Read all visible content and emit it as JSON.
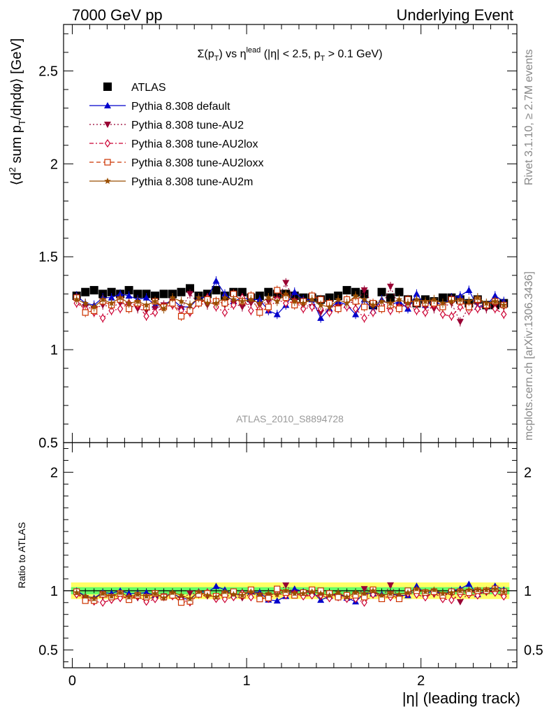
{
  "header": {
    "left": "7000 GeV pp",
    "right": "Underlying Event",
    "side_rivet": "Rivet 3.1.10, ≥ 2.7M events",
    "side_mcplots": "mcplots.cern.ch [arXiv:1306.3436]",
    "watermark": "ATLAS_2010_S8894728"
  },
  "chart_data": [
    {
      "type": "scatter",
      "panel": "main",
      "title_parts": {
        "sigma": "Σ(p",
        "t1": "T",
        "vs": ") vs η",
        "lead": "lead",
        "cut": " (|η| < 2.5, p",
        "t2": "T",
        "tail": " > 0.1 GeV)"
      },
      "ylabel_parts": {
        "open": "⟨d",
        "sup": "2",
        "mid": " sum p",
        "sub": "T",
        "tail": "/dηdφ⟩ [GeV]"
      },
      "xlabel": "|η| (leading track)",
      "xlim": [
        -0.05,
        2.55
      ],
      "ylim": [
        0.5,
        2.75
      ],
      "yticks_major": [
        0.5,
        1,
        1.5,
        2,
        2.5
      ],
      "ytick_labels": [
        "0.5",
        "1",
        "1.5",
        "2",
        "2.5"
      ],
      "x": [
        0.025,
        0.075,
        0.125,
        0.175,
        0.225,
        0.275,
        0.325,
        0.375,
        0.425,
        0.475,
        0.525,
        0.575,
        0.625,
        0.675,
        0.725,
        0.775,
        0.825,
        0.875,
        0.925,
        0.975,
        1.025,
        1.075,
        1.125,
        1.175,
        1.225,
        1.275,
        1.325,
        1.375,
        1.425,
        1.475,
        1.525,
        1.575,
        1.625,
        1.675,
        1.725,
        1.775,
        1.825,
        1.875,
        1.925,
        1.975,
        2.025,
        2.075,
        2.125,
        2.175,
        2.225,
        2.275,
        2.325,
        2.375,
        2.425,
        2.475
      ],
      "series": [
        {
          "name": "ATLAS",
          "color": "#000000",
          "marker": "square-filled",
          "line": "none",
          "values": [
            1.29,
            1.31,
            1.32,
            1.3,
            1.31,
            1.3,
            1.32,
            1.3,
            1.3,
            1.29,
            1.3,
            1.3,
            1.31,
            1.33,
            1.29,
            1.3,
            1.32,
            1.29,
            1.31,
            1.31,
            1.28,
            1.29,
            1.31,
            1.3,
            1.3,
            1.29,
            1.28,
            1.28,
            1.27,
            1.28,
            1.29,
            1.32,
            1.31,
            1.3,
            1.24,
            1.31,
            1.28,
            1.31,
            1.27,
            1.25,
            1.27,
            1.26,
            1.28,
            1.28,
            1.27,
            1.25,
            1.27,
            1.24,
            1.24,
            1.25
          ]
        },
        {
          "name": "Pythia 8.308 default",
          "color": "#0000cc",
          "marker": "triangle-up-filled",
          "line": "solid",
          "values": [
            1.29,
            1.25,
            1.24,
            1.28,
            1.28,
            1.3,
            1.29,
            1.27,
            1.28,
            1.24,
            1.24,
            1.27,
            1.23,
            1.23,
            1.28,
            1.28,
            1.37,
            1.3,
            1.26,
            1.28,
            1.27,
            1.27,
            1.21,
            1.19,
            1.24,
            1.31,
            1.27,
            1.27,
            1.17,
            1.22,
            1.26,
            1.24,
            1.19,
            1.27,
            1.21,
            1.27,
            1.24,
            1.26,
            1.22,
            1.3,
            1.24,
            1.26,
            1.24,
            1.28,
            1.29,
            1.32,
            1.23,
            1.24,
            1.29,
            1.26
          ]
        },
        {
          "name": "Pythia 8.308 tune-AU2",
          "color": "#990033",
          "marker": "triangle-down-filled",
          "line": "dotted",
          "values": [
            1.26,
            1.23,
            1.22,
            1.24,
            1.23,
            1.25,
            1.24,
            1.22,
            1.21,
            1.22,
            1.24,
            1.26,
            1.22,
            1.3,
            1.25,
            1.24,
            1.26,
            1.24,
            1.25,
            1.23,
            1.25,
            1.24,
            1.26,
            1.27,
            1.36,
            1.26,
            1.24,
            1.23,
            1.2,
            1.23,
            1.23,
            1.26,
            1.25,
            1.32,
            1.24,
            1.23,
            1.34,
            1.23,
            1.24,
            1.24,
            1.23,
            1.22,
            1.23,
            1.25,
            1.15,
            1.23,
            1.25,
            1.22,
            1.24,
            1.23
          ]
        },
        {
          "name": "Pythia 8.308 tune-AU2lox",
          "color": "#cc0033",
          "marker": "diamond-open",
          "line": "dashdot",
          "values": [
            1.25,
            1.22,
            1.2,
            1.17,
            1.21,
            1.22,
            1.25,
            1.24,
            1.18,
            1.2,
            1.23,
            1.24,
            1.21,
            1.2,
            1.25,
            1.28,
            1.23,
            1.2,
            1.24,
            1.28,
            1.21,
            1.22,
            1.22,
            1.27,
            1.25,
            1.26,
            1.22,
            1.23,
            1.22,
            1.2,
            1.22,
            1.23,
            1.22,
            1.17,
            1.2,
            1.24,
            1.21,
            1.23,
            1.24,
            1.21,
            1.2,
            1.24,
            1.19,
            1.18,
            1.23,
            1.21,
            1.22,
            1.24,
            1.22,
            1.19
          ]
        },
        {
          "name": "Pythia 8.308 tune-AU2loxx",
          "color": "#cc3300",
          "marker": "square-open",
          "line": "dashed",
          "values": [
            1.28,
            1.2,
            1.21,
            1.26,
            1.24,
            1.27,
            1.22,
            1.25,
            1.23,
            1.26,
            1.23,
            1.25,
            1.18,
            1.21,
            1.25,
            1.27,
            1.26,
            1.25,
            1.3,
            1.26,
            1.29,
            1.2,
            1.23,
            1.32,
            1.28,
            1.24,
            1.26,
            1.29,
            1.27,
            1.25,
            1.22,
            1.27,
            1.26,
            1.23,
            1.25,
            1.22,
            1.24,
            1.22,
            1.27,
            1.25,
            1.25,
            1.25,
            1.23,
            1.27,
            1.26,
            1.23,
            1.27,
            1.24,
            1.26,
            1.24
          ]
        },
        {
          "name": "Pythia 8.308 tune-AU2m",
          "color": "#994d00",
          "marker": "star-filled",
          "line": "solid",
          "values": [
            1.27,
            1.25,
            1.23,
            1.27,
            1.25,
            1.28,
            1.25,
            1.26,
            1.24,
            1.26,
            1.22,
            1.28,
            1.26,
            1.24,
            1.28,
            1.25,
            1.25,
            1.28,
            1.27,
            1.26,
            1.27,
            1.25,
            1.28,
            1.26,
            1.3,
            1.26,
            1.25,
            1.27,
            1.24,
            1.23,
            1.27,
            1.25,
            1.29,
            1.27,
            1.24,
            1.26,
            1.25,
            1.27,
            1.25,
            1.27,
            1.26,
            1.27,
            1.25,
            1.26,
            1.27,
            1.26,
            1.28,
            1.25,
            1.26,
            1.24
          ]
        }
      ],
      "legend": "top-left"
    },
    {
      "type": "scatter",
      "panel": "ratio",
      "ylabel": "Ratio to ATLAS",
      "xlim": [
        -0.05,
        2.55
      ],
      "ylim": [
        0.35,
        2.25
      ],
      "yticks_major": [
        0.5,
        1,
        2
      ],
      "ytick_labels": [
        "0.5",
        "1",
        "2"
      ],
      "xticks_major": [
        0,
        1,
        2
      ],
      "xtick_labels": [
        "0",
        "1",
        "2"
      ],
      "band_inner_halfwidth": 0.03,
      "band_outer_halfwidth": 0.07,
      "band_inner_color": "#66ff66",
      "band_outer_color": "#ffff66"
    }
  ]
}
